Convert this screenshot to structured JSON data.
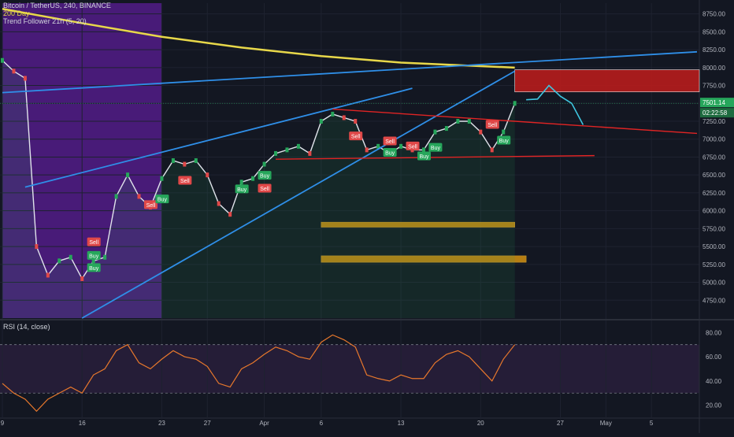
{
  "header": {
    "symbol_line": "Bitcoin / TetherUS, 240, BINANCE",
    "indicator_1": "200 Day",
    "indicator_2": "Trend Follower 21h (5, 20)"
  },
  "rsi_panel": {
    "label": "RSI (14, close)"
  },
  "price_badges": {
    "last_price": "7501.14",
    "countdown": "02:22:58"
  },
  "colors": {
    "background": "#131722",
    "grid": "#1e2230",
    "ma_line": "#e8d84a",
    "trendline_blue": "#2f8fe8",
    "triangle_red": "#e02424",
    "resistance_zone": "#b71c1c",
    "support_zone": "#c88a12",
    "purple_zone": "#5b1e96",
    "rsi_line": "#e8782c",
    "projection": "#3ec6e0",
    "buy": "#26a65b",
    "sell": "#e04848"
  },
  "chart_data": [
    {
      "type": "line",
      "title": "Bitcoin / TetherUS, 240, BINANCE",
      "xlabel": "",
      "ylabel": "",
      "x_ticks": [
        "9",
        "16",
        "23",
        "27",
        "Apr",
        "6",
        "13",
        "20",
        "27",
        "May",
        "5"
      ],
      "y_ticks": [
        "4750.00",
        "5000.00",
        "5250.00",
        "5500.00",
        "5750.00",
        "6000.00",
        "6250.00",
        "6500.00",
        "6750.00",
        "7000.00",
        "7250.00",
        "7500.00",
        "7750.00",
        "8000.00",
        "8250.00",
        "8500.00",
        "8750.00"
      ],
      "ylim": [
        4500,
        8900
      ],
      "grid": true,
      "price_series": {
        "name": "",
        "x": [
          "Mar 9",
          "Mar 10",
          "Mar 11",
          "Mar 12",
          "Mar 13",
          "Mar 14",
          "Mar 15",
          "Mar 16",
          "Mar 17",
          "Mar 18",
          "Mar 19",
          "Mar 20",
          "Mar 21",
          "Mar 22",
          "Mar 23",
          "Mar 24",
          "Mar 25",
          "Mar 26",
          "Mar 27",
          "Mar 28",
          "Mar 29",
          "Mar 30",
          "Mar 31",
          "Apr 1",
          "Apr 2",
          "Apr 3",
          "Apr 4",
          "Apr 5",
          "Apr 6",
          "Apr 7",
          "Apr 8",
          "Apr 9",
          "Apr 10",
          "Apr 11",
          "Apr 12",
          "Apr 13",
          "Apr 14",
          "Apr 15",
          "Apr 16",
          "Apr 17",
          "Apr 18",
          "Apr 19",
          "Apr 20",
          "Apr 21",
          "Apr 22",
          "Apr 23"
        ],
        "y": [
          8100,
          7950,
          7850,
          5500,
          5100,
          5300,
          5350,
          5050,
          5300,
          5350,
          6200,
          6500,
          6200,
          6050,
          6450,
          6700,
          6650,
          6700,
          6500,
          6100,
          5950,
          6400,
          6450,
          6650,
          6800,
          6850,
          6900,
          6800,
          7250,
          7350,
          7300,
          7250,
          6850,
          6900,
          6800,
          6900,
          6850,
          6850,
          7100,
          7150,
          7250,
          7250,
          7100,
          6850,
          7100,
          7500
        ]
      },
      "moving_average": {
        "name": "200 Day",
        "x": [
          "Mar 9",
          "Mar 16",
          "Mar 23",
          "Mar 30",
          "Apr 6",
          "Apr 13",
          "Apr 20",
          "Apr 23"
        ],
        "y": [
          8820,
          8620,
          8430,
          8280,
          8160,
          8070,
          8020,
          8000
        ]
      },
      "trendlines": [
        {
          "color": "blue",
          "from": [
            "Mar 9",
            7650
          ],
          "to": [
            "May 9",
            8220
          ]
        },
        {
          "color": "blue",
          "from": [
            "Mar 11",
            6330
          ],
          "to": [
            "Apr 14",
            7710
          ]
        },
        {
          "color": "blue",
          "from": [
            "Mar 16",
            4500
          ],
          "to": [
            "Apr 23",
            7950
          ]
        },
        {
          "color": "red",
          "from": [
            "Apr 7",
            7420
          ],
          "to": [
            "May 9",
            7080
          ]
        },
        {
          "color": "red",
          "from": [
            "Apr 2",
            6720
          ],
          "to": [
            "Apr 30",
            6770
          ]
        }
      ],
      "zones": [
        {
          "color": "red",
          "y_range": [
            7660,
            7970
          ],
          "x_from": "Apr 23"
        },
        {
          "color": "orange",
          "y_range": [
            5770,
            5840
          ],
          "x_range": [
            "Apr 6",
            "Apr 23"
          ]
        },
        {
          "color": "orange",
          "y_range": [
            5280,
            5370
          ],
          "x_range": [
            "Apr 6",
            "Apr 24"
          ]
        },
        {
          "color": "purple",
          "x_range": [
            "Mar 9",
            "Mar 23"
          ]
        }
      ],
      "projection": {
        "x": [
          "Apr 24",
          "Apr 25",
          "Apr 26",
          "Apr 27",
          "Apr 28",
          "Apr 29"
        ],
        "y": [
          7550,
          7560,
          7750,
          7600,
          7500,
          7200
        ]
      },
      "signals": [
        {
          "label": "Sell",
          "x": "Mar 17",
          "y": 5560
        },
        {
          "label": "Buy",
          "x": "Mar 17",
          "y": 5370
        },
        {
          "label": "Buy",
          "x": "Mar 17",
          "y": 5200
        },
        {
          "label": "Sell",
          "x": "Mar 22",
          "y": 6080
        },
        {
          "label": "Buy",
          "x": "Mar 23",
          "y": 6160
        },
        {
          "label": "Sell",
          "x": "Mar 25",
          "y": 6420
        },
        {
          "label": "Buy",
          "x": "Mar 30",
          "y": 6300
        },
        {
          "label": "Sell",
          "x": "Apr 1",
          "y": 6310
        },
        {
          "label": "Buy",
          "x": "Apr 1",
          "y": 6490
        },
        {
          "label": "Sell",
          "x": "Apr 9",
          "y": 7040
        },
        {
          "label": "Sell",
          "x": "Apr 12",
          "y": 6970
        },
        {
          "label": "Buy",
          "x": "Apr 12",
          "y": 6810
        },
        {
          "label": "Sell",
          "x": "Apr 14",
          "y": 6900
        },
        {
          "label": "Buy",
          "x": "Apr 15",
          "y": 6760
        },
        {
          "label": "Buy",
          "x": "Apr 16",
          "y": 6880
        },
        {
          "label": "Sell",
          "x": "Apr 21",
          "y": 7200
        },
        {
          "label": "Buy",
          "x": "Apr 22",
          "y": 6980
        }
      ]
    },
    {
      "type": "line",
      "title": "RSI (14, close)",
      "xlabel": "",
      "ylabel": "",
      "y_ticks": [
        "20.00",
        "40.00",
        "60.00",
        "80.00"
      ],
      "ylim": [
        10,
        88
      ],
      "guides": [
        70,
        30
      ],
      "grid": true,
      "series": [
        {
          "name": "",
          "x": [
            "Mar 9",
            "Mar 10",
            "Mar 11",
            "Mar 12",
            "Mar 13",
            "Mar 14",
            "Mar 15",
            "Mar 16",
            "Mar 17",
            "Mar 18",
            "Mar 19",
            "Mar 20",
            "Mar 21",
            "Mar 22",
            "Mar 23",
            "Mar 24",
            "Mar 25",
            "Mar 26",
            "Mar 27",
            "Mar 28",
            "Mar 29",
            "Mar 30",
            "Mar 31",
            "Apr 1",
            "Apr 2",
            "Apr 3",
            "Apr 4",
            "Apr 5",
            "Apr 6",
            "Apr 7",
            "Apr 8",
            "Apr 9",
            "Apr 10",
            "Apr 11",
            "Apr 12",
            "Apr 13",
            "Apr 14",
            "Apr 15",
            "Apr 16",
            "Apr 17",
            "Apr 18",
            "Apr 19",
            "Apr 20",
            "Apr 21",
            "Apr 22",
            "Apr 23"
          ],
          "values": [
            38,
            30,
            25,
            15,
            25,
            30,
            35,
            30,
            45,
            50,
            65,
            70,
            55,
            50,
            58,
            65,
            60,
            58,
            52,
            38,
            35,
            50,
            55,
            62,
            68,
            65,
            60,
            58,
            72,
            78,
            74,
            68,
            45,
            42,
            40,
            45,
            42,
            42,
            55,
            62,
            65,
            60,
            50,
            40,
            58,
            70
          ]
        }
      ]
    }
  ]
}
